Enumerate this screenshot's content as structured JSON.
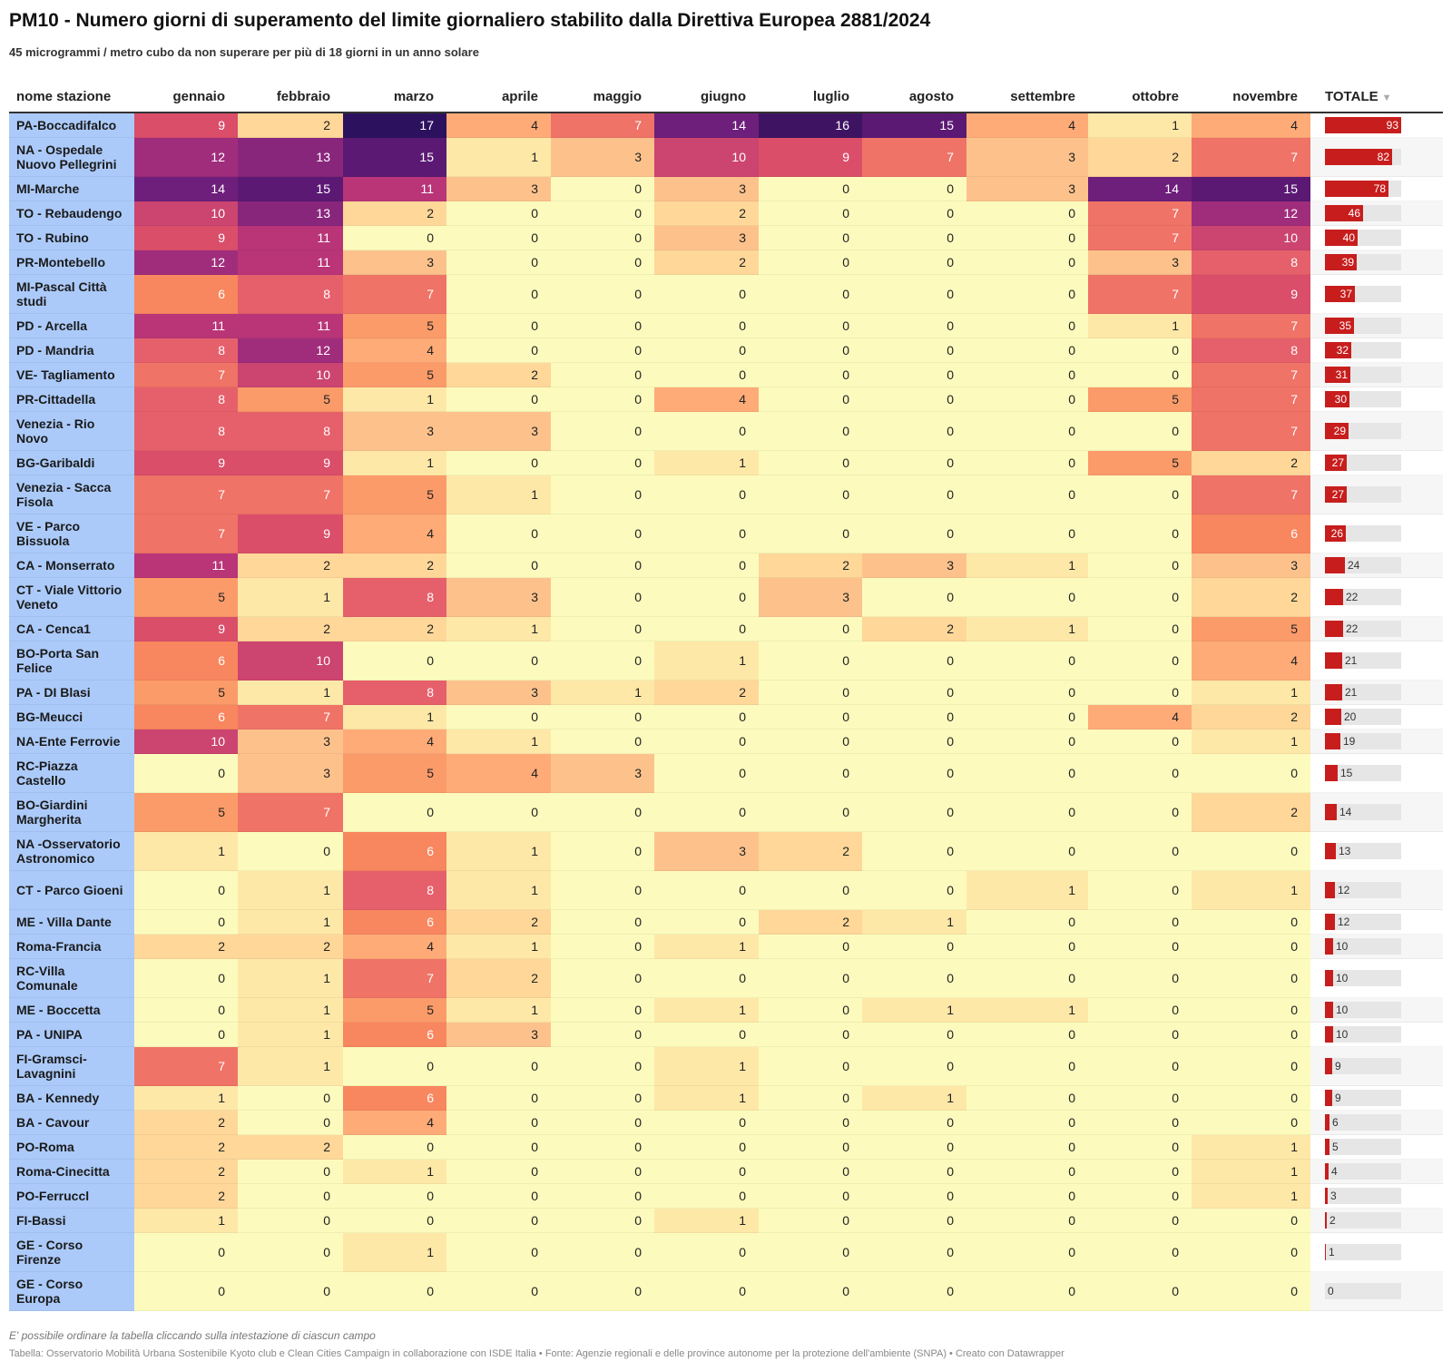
{
  "header": {
    "title": "PM10 - Numero giorni di superamento del limite giornaliero stabilito dalla Direttiva Europea 2881/2024",
    "subtitle": "45 microgrammi / metro cubo da non superare per più di 18 giorni in un anno solare"
  },
  "footer": {
    "notes": "E' possibile ordinare la tabella cliccando sulla intestazione di ciascun campo",
    "source": "Tabella: Osservatorio Mobilità Urbana Sostenibile Kyoto club e Clean Cities Campaign in collaborazione con ISDE Italia • Fonte: Agenzie regionali e delle province autonome per la protezione dell'ambiente (SNPA) • Creato con Datawrapper"
  },
  "colors": {
    "name_column_bg": "#abcaf9",
    "total_bar": "#c71e1d",
    "total_bar_track": "#e6e6e6",
    "heatmap_scale": [
      "#fcfbbd",
      "#fee8a8",
      "#fed799",
      "#fdc28c",
      "#feab78",
      "#fb9b69",
      "#f8865e",
      "#ef7366",
      "#e6606c",
      "#da4e6a",
      "#cc4470",
      "#b93578",
      "#a02d7c",
      "#88267c",
      "#6e1f7c",
      "#5b1974",
      "#3e1462",
      "#2c115f"
    ]
  },
  "chart_data": {
    "type": "table",
    "title": "PM10 - Numero giorni di superamento del limite giornaliero stabilito dalla Direttiva Europea 2881/2024",
    "subtitle": "45 microgrammi / metro cubo da non superare per più di 18 giorni in un anno solare",
    "columns": [
      "nome stazione",
      "gennaio",
      "febbraio",
      "marzo",
      "aprile",
      "maggio",
      "giugno",
      "luglio",
      "agosto",
      "settembre",
      "ottobre",
      "novembre",
      "TOTALE"
    ],
    "sort_column": "TOTALE",
    "sort_direction": "descending",
    "color_scale_range": [
      0,
      17
    ],
    "total_bar_max": 93,
    "rows": [
      {
        "name": "PA-Boccadifalco",
        "values": [
          9,
          2,
          17,
          4,
          7,
          14,
          16,
          15,
          4,
          1,
          4
        ],
        "total": 93
      },
      {
        "name": "NA - Ospedale Nuovo Pellegrini",
        "values": [
          12,
          13,
          15,
          1,
          3,
          10,
          9,
          7,
          3,
          2,
          7
        ],
        "total": 82
      },
      {
        "name": "MI-Marche",
        "values": [
          14,
          15,
          11,
          3,
          0,
          3,
          0,
          0,
          3,
          14,
          15
        ],
        "total": 78
      },
      {
        "name": "TO - Rebaudengo",
        "values": [
          10,
          13,
          2,
          0,
          0,
          2,
          0,
          0,
          0,
          7,
          12
        ],
        "total": 46
      },
      {
        "name": "TO - Rubino",
        "values": [
          9,
          11,
          0,
          0,
          0,
          3,
          0,
          0,
          0,
          7,
          10
        ],
        "total": 40
      },
      {
        "name": "PR-Montebello",
        "values": [
          12,
          11,
          3,
          0,
          0,
          2,
          0,
          0,
          0,
          3,
          8
        ],
        "total": 39
      },
      {
        "name": "MI-Pascal Città studi",
        "values": [
          6,
          8,
          7,
          0,
          0,
          0,
          0,
          0,
          0,
          7,
          9
        ],
        "total": 37
      },
      {
        "name": "PD - Arcella",
        "values": [
          11,
          11,
          5,
          0,
          0,
          0,
          0,
          0,
          0,
          1,
          7
        ],
        "total": 35
      },
      {
        "name": "PD - Mandria",
        "values": [
          8,
          12,
          4,
          0,
          0,
          0,
          0,
          0,
          0,
          0,
          8
        ],
        "total": 32
      },
      {
        "name": "VE- Tagliamento",
        "values": [
          7,
          10,
          5,
          2,
          0,
          0,
          0,
          0,
          0,
          0,
          7
        ],
        "total": 31
      },
      {
        "name": "PR-Cittadella",
        "values": [
          8,
          5,
          1,
          0,
          0,
          4,
          0,
          0,
          0,
          5,
          7
        ],
        "total": 30
      },
      {
        "name": "Venezia - Rio Novo",
        "values": [
          8,
          8,
          3,
          3,
          0,
          0,
          0,
          0,
          0,
          0,
          7
        ],
        "total": 29
      },
      {
        "name": "BG-Garibaldi",
        "values": [
          9,
          9,
          1,
          0,
          0,
          1,
          0,
          0,
          0,
          5,
          2
        ],
        "total": 27
      },
      {
        "name": "Venezia - Sacca Fisola",
        "values": [
          7,
          7,
          5,
          1,
          0,
          0,
          0,
          0,
          0,
          0,
          7
        ],
        "total": 27
      },
      {
        "name": "VE - Parco Bissuola",
        "values": [
          7,
          9,
          4,
          0,
          0,
          0,
          0,
          0,
          0,
          0,
          6
        ],
        "total": 26
      },
      {
        "name": "CA - Monserrato",
        "values": [
          11,
          2,
          2,
          0,
          0,
          0,
          2,
          3,
          1,
          0,
          3
        ],
        "total": 24
      },
      {
        "name": "CT - Viale Vittorio Veneto",
        "values": [
          5,
          1,
          8,
          3,
          0,
          0,
          3,
          0,
          0,
          0,
          2
        ],
        "total": 22
      },
      {
        "name": "CA - Cenca1",
        "values": [
          9,
          2,
          2,
          1,
          0,
          0,
          0,
          2,
          1,
          0,
          5
        ],
        "total": 22
      },
      {
        "name": "BO-Porta San Felice",
        "values": [
          6,
          10,
          0,
          0,
          0,
          1,
          0,
          0,
          0,
          0,
          4
        ],
        "total": 21
      },
      {
        "name": "PA - DI Blasi",
        "values": [
          5,
          1,
          8,
          3,
          1,
          2,
          0,
          0,
          0,
          0,
          1
        ],
        "total": 21
      },
      {
        "name": "BG-Meucci",
        "values": [
          6,
          7,
          1,
          0,
          0,
          0,
          0,
          0,
          0,
          4,
          2
        ],
        "total": 20
      },
      {
        "name": "NA-Ente Ferrovie",
        "values": [
          10,
          3,
          4,
          1,
          0,
          0,
          0,
          0,
          0,
          0,
          1
        ],
        "total": 19
      },
      {
        "name": "RC-Piazza Castello",
        "values": [
          0,
          3,
          5,
          4,
          3,
          0,
          0,
          0,
          0,
          0,
          0
        ],
        "total": 15
      },
      {
        "name": "BO-Giardini Margherita",
        "values": [
          5,
          7,
          0,
          0,
          0,
          0,
          0,
          0,
          0,
          0,
          2
        ],
        "total": 14
      },
      {
        "name": "NA -Osservatorio Astronomico",
        "values": [
          1,
          0,
          6,
          1,
          0,
          3,
          2,
          0,
          0,
          0,
          0
        ],
        "total": 13
      },
      {
        "name": "CT - Parco Gioeni",
        "values": [
          0,
          1,
          8,
          1,
          0,
          0,
          0,
          0,
          1,
          0,
          1
        ],
        "total": 12
      },
      {
        "name": "ME - Villa Dante",
        "values": [
          0,
          1,
          6,
          2,
          0,
          0,
          2,
          1,
          0,
          0,
          0
        ],
        "total": 12
      },
      {
        "name": "Roma-Francia",
        "values": [
          2,
          2,
          4,
          1,
          0,
          1,
          0,
          0,
          0,
          0,
          0
        ],
        "total": 10
      },
      {
        "name": "RC-Villa Comunale",
        "values": [
          0,
          1,
          7,
          2,
          0,
          0,
          0,
          0,
          0,
          0,
          0
        ],
        "total": 10
      },
      {
        "name": "ME - Boccetta",
        "values": [
          0,
          1,
          5,
          1,
          0,
          1,
          0,
          1,
          1,
          0,
          0
        ],
        "total": 10
      },
      {
        "name": "PA - UNIPA",
        "values": [
          0,
          1,
          6,
          3,
          0,
          0,
          0,
          0,
          0,
          0,
          0
        ],
        "total": 10
      },
      {
        "name": "FI-Gramsci-Lavagnini",
        "values": [
          7,
          1,
          0,
          0,
          0,
          1,
          0,
          0,
          0,
          0,
          0
        ],
        "total": 9
      },
      {
        "name": "BA - Kennedy",
        "values": [
          1,
          0,
          6,
          0,
          0,
          1,
          0,
          1,
          0,
          0,
          0
        ],
        "total": 9
      },
      {
        "name": "BA - Cavour",
        "values": [
          2,
          0,
          4,
          0,
          0,
          0,
          0,
          0,
          0,
          0,
          0
        ],
        "total": 6
      },
      {
        "name": "PO-Roma",
        "values": [
          2,
          2,
          0,
          0,
          0,
          0,
          0,
          0,
          0,
          0,
          1
        ],
        "total": 5
      },
      {
        "name": "Roma-Cinecitta",
        "values": [
          2,
          0,
          1,
          0,
          0,
          0,
          0,
          0,
          0,
          0,
          1
        ],
        "total": 4
      },
      {
        "name": "PO-Ferruccl",
        "values": [
          2,
          0,
          0,
          0,
          0,
          0,
          0,
          0,
          0,
          0,
          1
        ],
        "total": 3
      },
      {
        "name": "FI-Bassi",
        "values": [
          1,
          0,
          0,
          0,
          0,
          1,
          0,
          0,
          0,
          0,
          0
        ],
        "total": 2
      },
      {
        "name": "GE - Corso Firenze",
        "values": [
          0,
          0,
          1,
          0,
          0,
          0,
          0,
          0,
          0,
          0,
          0
        ],
        "total": 1
      },
      {
        "name": "GE - Corso Europa",
        "values": [
          0,
          0,
          0,
          0,
          0,
          0,
          0,
          0,
          0,
          0,
          0
        ],
        "total": 0
      }
    ]
  }
}
